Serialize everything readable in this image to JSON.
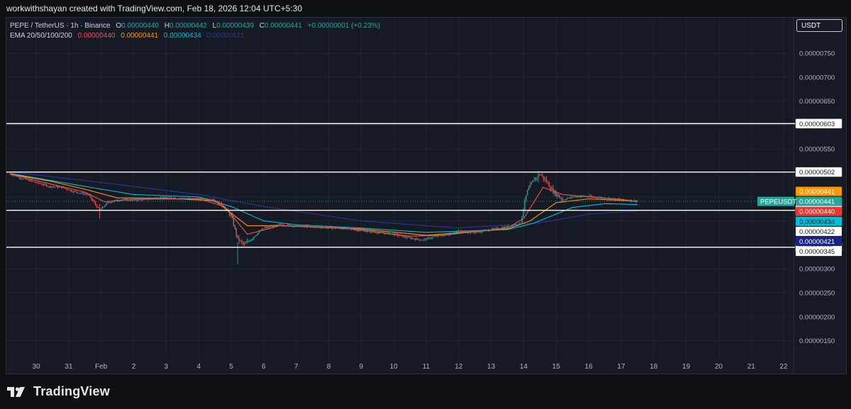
{
  "attribution": "workwithshayan created with TradingView.com, Feb 18, 2026 12:04 UTC+5:30",
  "legend": {
    "symbol": "PEPE / TetherUS · 1h · Binance",
    "ohlc": {
      "o_label": "O",
      "o": "0.00000440",
      "h_label": "H",
      "h": "0.00000442",
      "l_label": "L",
      "l": "0.00000439",
      "c_label": "C",
      "c": "0.00000441",
      "change": "+0.00000001 (+0.23%)"
    },
    "ema_label": "EMA 20/50/100/200",
    "ema_values": [
      "0.00000440",
      "0.00000441",
      "0.00000434",
      "0.00000421"
    ]
  },
  "currency_button": "USDT",
  "footer": {
    "brand": "TradingView",
    "logo_icon": "tradingview-logo-icon"
  },
  "colors": {
    "background": "#161a25",
    "up": "#26a69a",
    "down": "#ef5350",
    "ema20": "#ef5350",
    "ema50": "#ff9800",
    "ema100": "#00bcd4",
    "ema200": "#283593",
    "level_line": "#ffffff"
  },
  "chart_data": {
    "type": "candlestick",
    "symbol_tag": "PEPEUSDT",
    "y_axis_ticks": [
      "0.00000750",
      "0.00000700",
      "0.00000650",
      "0.00000550",
      "0.00000300",
      "0.00000250",
      "0.00000200",
      "0.00000150"
    ],
    "x_axis_ticks": [
      "30",
      "31",
      "Feb",
      "2",
      "3",
      "4",
      "5",
      "6",
      "7",
      "8",
      "9",
      "10",
      "11",
      "12",
      "13",
      "14",
      "15",
      "16",
      "17",
      "18",
      "19",
      "20",
      "21",
      "22"
    ],
    "ylim": [
      1.2e-06,
      8.1e-06
    ],
    "horizontal_levels": [
      "0.00000603",
      "0.00000502",
      "0.00000422",
      "0.00000345"
    ],
    "price_labels": [
      {
        "text": "0.00000441",
        "kind": "ema50"
      },
      {
        "text": "0.00000441",
        "kind": "last"
      },
      {
        "text": "0.00000440",
        "kind": "ema20"
      },
      {
        "text": "0.00000434",
        "kind": "ema100"
      },
      {
        "text": "0.00000422",
        "kind": "level"
      },
      {
        "text": "0.00000421",
        "kind": "ema200"
      },
      {
        "text": "0.00000345",
        "kind": "level"
      }
    ],
    "price_path": [
      {
        "d": 29.2,
        "p": 4.98
      },
      {
        "d": 29.6,
        "p": 4.88
      },
      {
        "d": 30.0,
        "p": 4.8
      },
      {
        "d": 30.4,
        "p": 4.72
      },
      {
        "d": 30.8,
        "p": 4.7
      },
      {
        "d": 31.1,
        "p": 4.62
      },
      {
        "d": 31.6,
        "p": 4.55
      },
      {
        "d": 31.95,
        "p": 4.22
      },
      {
        "d": 32.2,
        "p": 4.38
      },
      {
        "d": 32.6,
        "p": 4.45
      },
      {
        "d": 33.0,
        "p": 4.43
      },
      {
        "d": 33.5,
        "p": 4.47
      },
      {
        "d": 34.0,
        "p": 4.49
      },
      {
        "d": 34.5,
        "p": 4.47
      },
      {
        "d": 35.0,
        "p": 4.46
      },
      {
        "d": 35.4,
        "p": 4.46
      },
      {
        "d": 35.7,
        "p": 4.35
      },
      {
        "d": 36.0,
        "p": 4.1
      },
      {
        "d": 36.2,
        "p": 3.62
      },
      {
        "d": 36.4,
        "p": 3.5
      },
      {
        "d": 36.7,
        "p": 3.68
      },
      {
        "d": 37.0,
        "p": 3.85
      },
      {
        "d": 37.5,
        "p": 3.92
      },
      {
        "d": 38.0,
        "p": 3.9
      },
      {
        "d": 38.5,
        "p": 3.88
      },
      {
        "d": 39.0,
        "p": 3.86
      },
      {
        "d": 39.5,
        "p": 3.84
      },
      {
        "d": 40.0,
        "p": 3.8
      },
      {
        "d": 40.5,
        "p": 3.76
      },
      {
        "d": 41.0,
        "p": 3.72
      },
      {
        "d": 41.5,
        "p": 3.64
      },
      {
        "d": 41.9,
        "p": 3.6
      },
      {
        "d": 42.3,
        "p": 3.68
      },
      {
        "d": 42.7,
        "p": 3.72
      },
      {
        "d": 43.0,
        "p": 3.78
      },
      {
        "d": 43.5,
        "p": 3.76
      },
      {
        "d": 44.0,
        "p": 3.82
      },
      {
        "d": 44.5,
        "p": 3.88
      },
      {
        "d": 44.9,
        "p": 3.95
      },
      {
        "d": 45.1,
        "p": 4.6
      },
      {
        "d": 45.3,
        "p": 4.85
      },
      {
        "d": 45.5,
        "p": 4.98
      },
      {
        "d": 45.7,
        "p": 4.82
      },
      {
        "d": 45.9,
        "p": 4.62
      },
      {
        "d": 46.2,
        "p": 4.44
      },
      {
        "d": 46.5,
        "p": 4.5
      },
      {
        "d": 46.8,
        "p": 4.52
      },
      {
        "d": 47.2,
        "p": 4.5
      },
      {
        "d": 47.6,
        "p": 4.46
      },
      {
        "d": 48.0,
        "p": 4.44
      },
      {
        "d": 48.3,
        "p": 4.43
      },
      {
        "d": 48.5,
        "p": 4.41
      }
    ],
    "ema20": [
      {
        "d": 29.2,
        "p": 4.98
      },
      {
        "d": 30.5,
        "p": 4.76
      },
      {
        "d": 31.5,
        "p": 4.6
      },
      {
        "d": 32.1,
        "p": 4.4
      },
      {
        "d": 33.0,
        "p": 4.45
      },
      {
        "d": 35.0,
        "p": 4.46
      },
      {
        "d": 35.8,
        "p": 4.3
      },
      {
        "d": 36.5,
        "p": 3.72
      },
      {
        "d": 37.5,
        "p": 3.9
      },
      {
        "d": 39.5,
        "p": 3.85
      },
      {
        "d": 41.5,
        "p": 3.68
      },
      {
        "d": 42.5,
        "p": 3.7
      },
      {
        "d": 44.5,
        "p": 3.85
      },
      {
        "d": 45.0,
        "p": 4.05
      },
      {
        "d": 45.6,
        "p": 4.7
      },
      {
        "d": 46.2,
        "p": 4.55
      },
      {
        "d": 47.0,
        "p": 4.5
      },
      {
        "d": 48.0,
        "p": 4.45
      },
      {
        "d": 48.5,
        "p": 4.4
      }
    ],
    "ema50": [
      {
        "d": 29.2,
        "p": 4.98
      },
      {
        "d": 30.5,
        "p": 4.82
      },
      {
        "d": 31.5,
        "p": 4.66
      },
      {
        "d": 32.5,
        "p": 4.48
      },
      {
        "d": 34.0,
        "p": 4.47
      },
      {
        "d": 35.5,
        "p": 4.42
      },
      {
        "d": 36.5,
        "p": 3.9
      },
      {
        "d": 37.5,
        "p": 3.9
      },
      {
        "d": 40.0,
        "p": 3.83
      },
      {
        "d": 42.0,
        "p": 3.7
      },
      {
        "d": 44.5,
        "p": 3.83
      },
      {
        "d": 45.2,
        "p": 4.0
      },
      {
        "d": 46.0,
        "p": 4.38
      },
      {
        "d": 47.0,
        "p": 4.46
      },
      {
        "d": 48.5,
        "p": 4.41
      }
    ],
    "ema100": [
      {
        "d": 29.2,
        "p": 4.99
      },
      {
        "d": 31.5,
        "p": 4.72
      },
      {
        "d": 33.0,
        "p": 4.55
      },
      {
        "d": 35.0,
        "p": 4.5
      },
      {
        "d": 36.0,
        "p": 4.3
      },
      {
        "d": 37.0,
        "p": 4.0
      },
      {
        "d": 38.0,
        "p": 3.92
      },
      {
        "d": 40.0,
        "p": 3.85
      },
      {
        "d": 42.0,
        "p": 3.76
      },
      {
        "d": 44.5,
        "p": 3.82
      },
      {
        "d": 45.3,
        "p": 3.95
      },
      {
        "d": 46.5,
        "p": 4.28
      },
      {
        "d": 47.5,
        "p": 4.36
      },
      {
        "d": 48.5,
        "p": 4.34
      }
    ],
    "ema200": [
      {
        "d": 29.2,
        "p": 5.02
      },
      {
        "d": 32.0,
        "p": 4.8
      },
      {
        "d": 35.0,
        "p": 4.55
      },
      {
        "d": 37.0,
        "p": 4.3
      },
      {
        "d": 40.0,
        "p": 4.0
      },
      {
        "d": 43.0,
        "p": 3.85
      },
      {
        "d": 45.5,
        "p": 3.96
      },
      {
        "d": 47.0,
        "p": 4.14
      },
      {
        "d": 48.5,
        "p": 4.21
      }
    ]
  }
}
